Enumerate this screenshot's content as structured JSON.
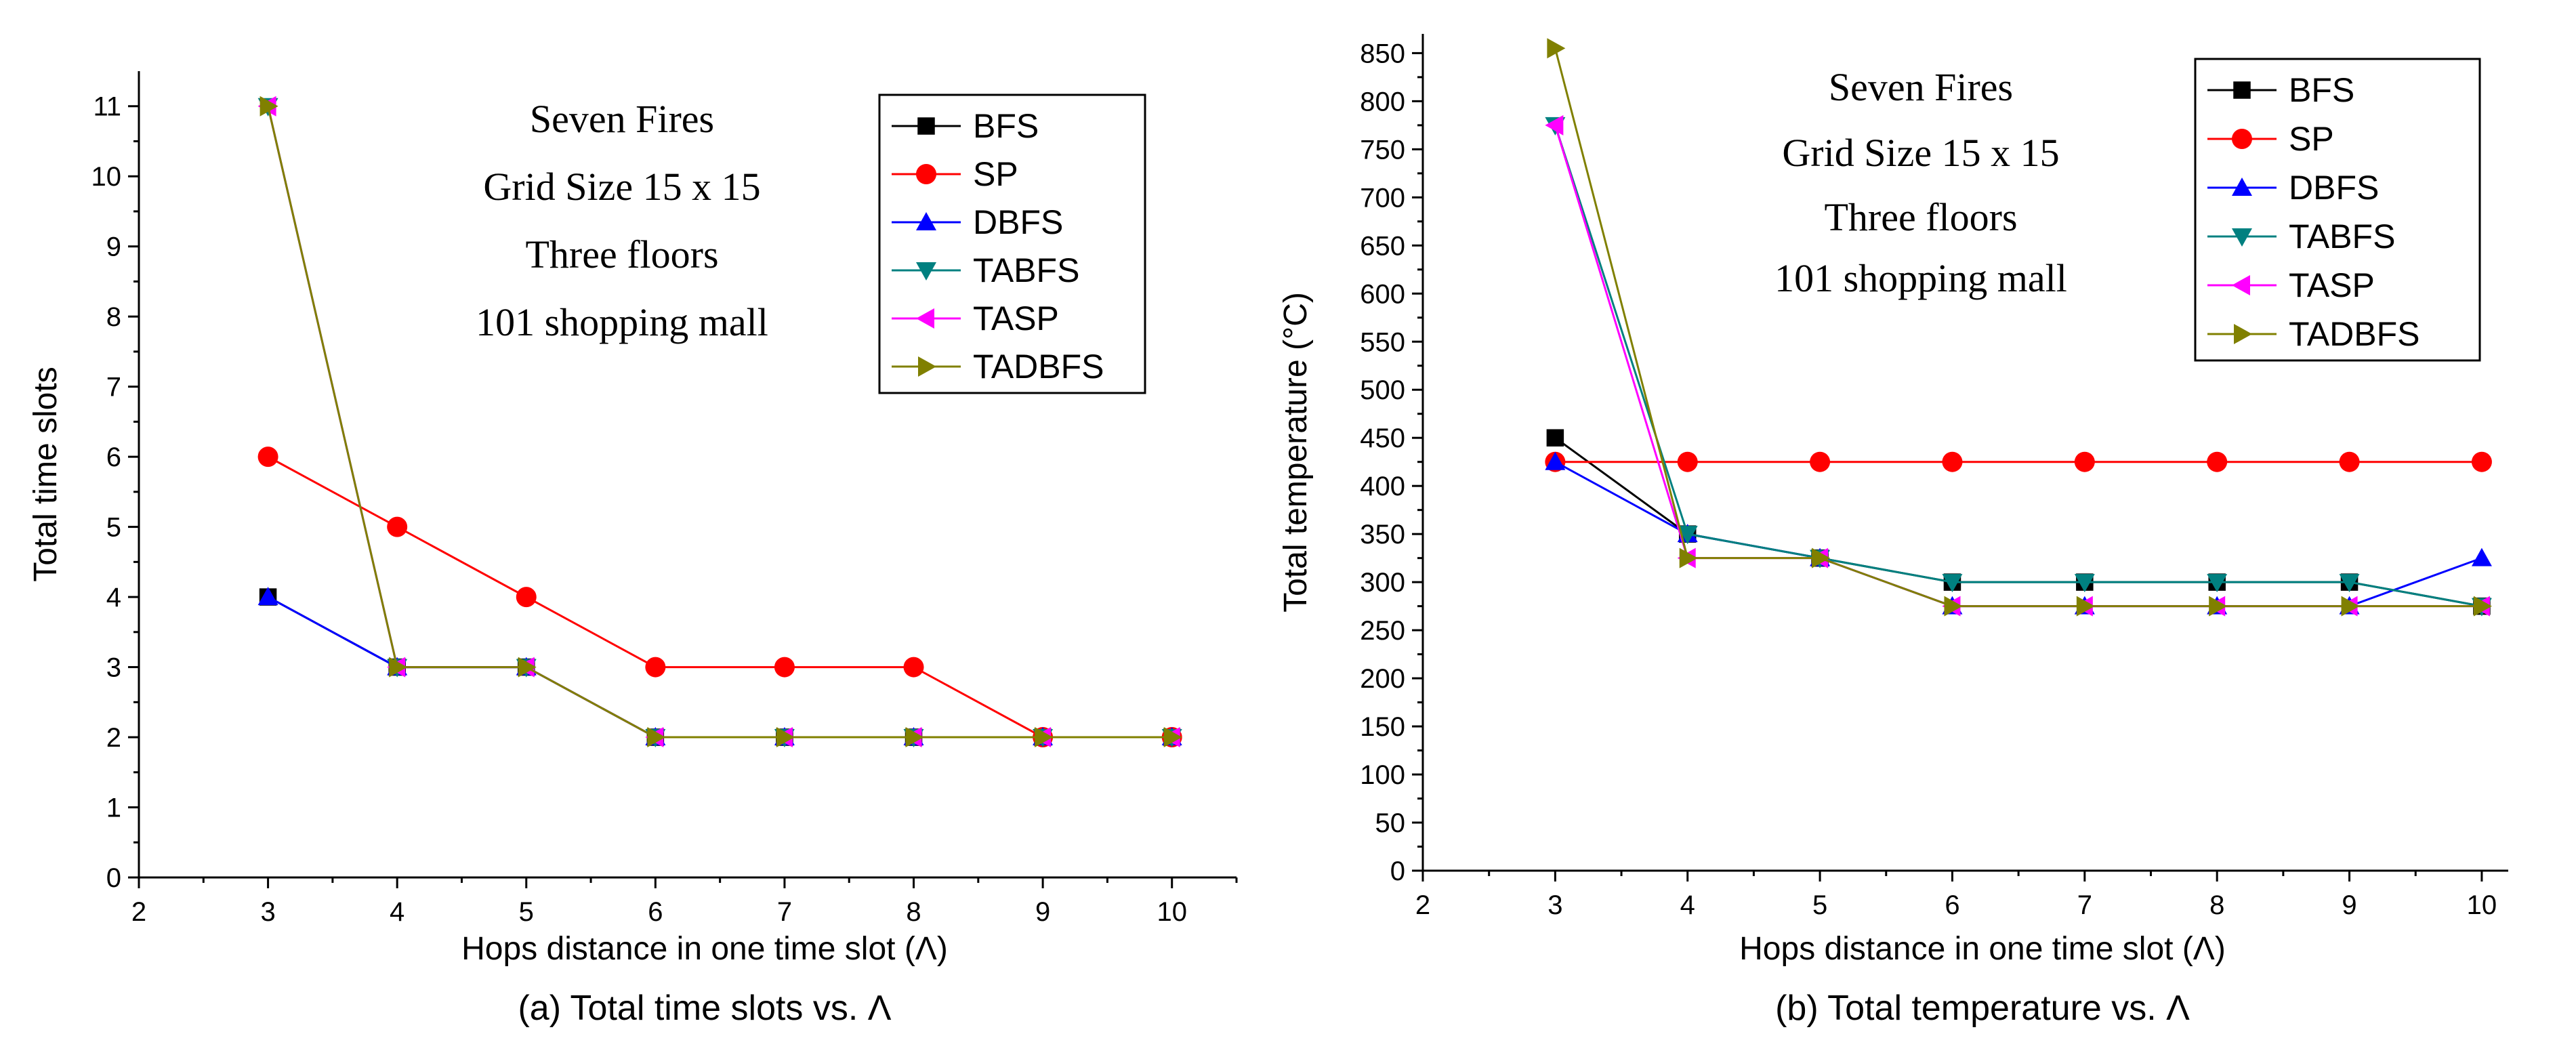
{
  "chart_data": [
    {
      "type": "line",
      "caption": "(a) Total time slots vs. Λ",
      "xlabel": "Hops distance in one time slot (Λ)",
      "ylabel": "Total time slots",
      "xlim": [
        2,
        10.5
      ],
      "ylim": [
        0,
        11.5
      ],
      "xticks": [
        2,
        3,
        4,
        5,
        6,
        7,
        8,
        9,
        10
      ],
      "yticks": [
        0,
        1,
        2,
        3,
        4,
        5,
        6,
        7,
        8,
        9,
        10,
        11
      ],
      "annotations": [
        "Seven Fires",
        "Grid Size 15 x 15",
        "Three floors",
        "101 shopping mall"
      ],
      "legend_position": "top-right",
      "x": [
        3,
        4,
        5,
        6,
        7,
        8,
        9,
        10
      ],
      "series": [
        {
          "name": "BFS",
          "marker": "square",
          "color": "#000000",
          "values": [
            4,
            3,
            3,
            2,
            2,
            2,
            2,
            2
          ]
        },
        {
          "name": "SP",
          "marker": "circle",
          "color": "#ff0000",
          "values": [
            6,
            5,
            4,
            3,
            3,
            3,
            2,
            2
          ]
        },
        {
          "name": "DBFS",
          "marker": "triangle-up",
          "color": "#0000ff",
          "values": [
            4,
            3,
            3,
            2,
            2,
            2,
            2,
            2
          ]
        },
        {
          "name": "TABFS",
          "marker": "triangle-down",
          "color": "#008080",
          "values": [
            11,
            3,
            3,
            2,
            2,
            2,
            2,
            2
          ]
        },
        {
          "name": "TASP",
          "marker": "triangle-left",
          "color": "#ff00ff",
          "values": [
            11,
            3,
            3,
            2,
            2,
            2,
            2,
            2
          ]
        },
        {
          "name": "TADBFS",
          "marker": "triangle-right",
          "color": "#808000",
          "values": [
            11,
            3,
            3,
            2,
            2,
            2,
            2,
            2
          ]
        }
      ]
    },
    {
      "type": "line",
      "caption": "(b) Total temperature vs. Λ",
      "xlabel": "Hops distance in one time slot (Λ)",
      "ylabel": "Total temperature (°C)",
      "xlim": [
        2,
        10.2
      ],
      "ylim": [
        0,
        870
      ],
      "xticks": [
        2,
        3,
        4,
        5,
        6,
        7,
        8,
        9,
        10
      ],
      "yticks": [
        0,
        50,
        100,
        150,
        200,
        250,
        300,
        350,
        400,
        450,
        500,
        550,
        600,
        650,
        700,
        750,
        800,
        850
      ],
      "annotations": [
        "Seven Fires",
        "Grid Size 15 x 15",
        "Three floors",
        "101 shopping mall"
      ],
      "legend_position": "top-right",
      "x": [
        3,
        4,
        5,
        6,
        7,
        8,
        9,
        10
      ],
      "series": [
        {
          "name": "BFS",
          "marker": "square",
          "color": "#000000",
          "values": [
            450,
            350,
            325,
            300,
            300,
            300,
            300,
            275
          ]
        },
        {
          "name": "SP",
          "marker": "circle",
          "color": "#ff0000",
          "values": [
            425,
            425,
            425,
            425,
            425,
            425,
            425,
            425
          ]
        },
        {
          "name": "DBFS",
          "marker": "triangle-up",
          "color": "#0000ff",
          "values": [
            425,
            350,
            325,
            275,
            275,
            275,
            275,
            325
          ]
        },
        {
          "name": "TABFS",
          "marker": "triangle-down",
          "color": "#008080",
          "values": [
            775,
            350,
            325,
            300,
            300,
            300,
            300,
            275
          ]
        },
        {
          "name": "TASP",
          "marker": "triangle-left",
          "color": "#ff00ff",
          "values": [
            775,
            325,
            325,
            275,
            275,
            275,
            275,
            275
          ]
        },
        {
          "name": "TADBFS",
          "marker": "triangle-right",
          "color": "#808000",
          "values": [
            855,
            325,
            325,
            275,
            275,
            275,
            275,
            275
          ]
        }
      ]
    }
  ]
}
